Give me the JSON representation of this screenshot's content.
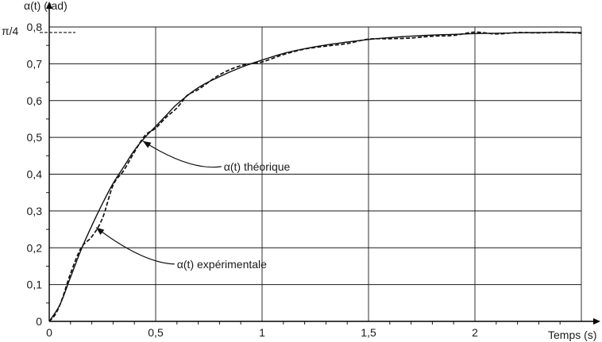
{
  "chart_data": {
    "type": "line",
    "ylabel": "α(t) (rad)",
    "xlabel": "Temps (s)",
    "xlim": [
      0,
      2.5
    ],
    "ylim": [
      0,
      0.8
    ],
    "x_ticks": [
      0,
      0.5,
      1,
      1.5,
      2
    ],
    "x_tick_labels": [
      "0",
      "0,5",
      "1",
      "1,5",
      "2"
    ],
    "y_ticks": [
      0,
      0.1,
      0.2,
      0.3,
      0.4,
      0.5,
      0.6,
      0.7,
      0.8
    ],
    "y_tick_labels": [
      "0",
      "0,1",
      "0,2",
      "0,3",
      "0,4",
      "0,5",
      "0,6",
      "0,7",
      "0,8"
    ],
    "grid": true,
    "reference_line": {
      "label": "π/4",
      "y": 0.785
    },
    "series": [
      {
        "name": "α(t) théorique",
        "style": "solid",
        "points": [
          [
            0,
            0
          ],
          [
            0.05,
            0.045
          ],
          [
            0.1,
            0.12
          ],
          [
            0.15,
            0.195
          ],
          [
            0.2,
            0.26
          ],
          [
            0.25,
            0.32
          ],
          [
            0.3,
            0.375
          ],
          [
            0.35,
            0.42
          ],
          [
            0.4,
            0.465
          ],
          [
            0.45,
            0.5
          ],
          [
            0.5,
            0.53
          ],
          [
            0.55,
            0.56
          ],
          [
            0.6,
            0.59
          ],
          [
            0.7,
            0.635
          ],
          [
            0.8,
            0.665
          ],
          [
            0.9,
            0.69
          ],
          [
            1.0,
            0.71
          ],
          [
            1.1,
            0.728
          ],
          [
            1.2,
            0.741
          ],
          [
            1.3,
            0.751
          ],
          [
            1.4,
            0.759
          ],
          [
            1.5,
            0.766
          ],
          [
            1.6,
            0.771
          ],
          [
            1.7,
            0.775
          ],
          [
            1.8,
            0.778
          ],
          [
            1.9,
            0.78
          ],
          [
            2.0,
            0.782
          ],
          [
            2.1,
            0.783
          ],
          [
            2.2,
            0.784
          ],
          [
            2.3,
            0.785
          ],
          [
            2.4,
            0.785
          ],
          [
            2.5,
            0.785
          ]
        ]
      },
      {
        "name": "α(t) expérimentale",
        "style": "dashed",
        "points": [
          [
            0,
            0
          ],
          [
            0.03,
            0.02
          ],
          [
            0.06,
            0.06
          ],
          [
            0.1,
            0.13
          ],
          [
            0.15,
            0.2
          ],
          [
            0.2,
            0.23
          ],
          [
            0.25,
            0.28
          ],
          [
            0.3,
            0.37
          ],
          [
            0.35,
            0.41
          ],
          [
            0.4,
            0.46
          ],
          [
            0.45,
            0.505
          ],
          [
            0.5,
            0.525
          ],
          [
            0.55,
            0.555
          ],
          [
            0.6,
            0.58
          ],
          [
            0.65,
            0.615
          ],
          [
            0.7,
            0.63
          ],
          [
            0.8,
            0.67
          ],
          [
            0.9,
            0.695
          ],
          [
            1.0,
            0.705
          ],
          [
            1.1,
            0.725
          ],
          [
            1.2,
            0.74
          ],
          [
            1.3,
            0.748
          ],
          [
            1.4,
            0.755
          ],
          [
            1.5,
            0.767
          ],
          [
            1.6,
            0.768
          ],
          [
            1.7,
            0.77
          ],
          [
            1.8,
            0.775
          ],
          [
            1.9,
            0.777
          ],
          [
            2.0,
            0.786
          ],
          [
            2.1,
            0.781
          ],
          [
            2.2,
            0.785
          ],
          [
            2.3,
            0.784
          ],
          [
            2.4,
            0.786
          ],
          [
            2.5,
            0.783
          ]
        ]
      }
    ],
    "annotations": [
      {
        "text": "α(t) théorique",
        "x": 0.82,
        "y": 0.41,
        "target": [
          0.44,
          0.49
        ]
      },
      {
        "text": "α(t) expérimentale",
        "x": 0.6,
        "y": 0.145,
        "target": [
          0.22,
          0.255
        ]
      }
    ]
  }
}
